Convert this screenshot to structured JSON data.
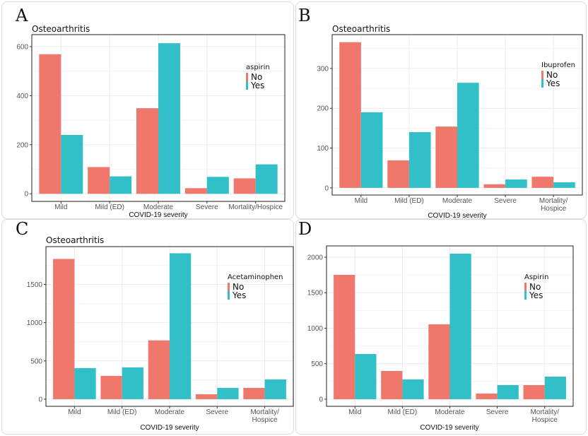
{
  "colors": {
    "No": "#F0776C",
    "Yes": "#31C0C7"
  },
  "chart_data": [
    {
      "panel": "A",
      "type": "bar",
      "title": "Osteoarthritis",
      "xlabel": "COVID-19 severity",
      "ylabel": "",
      "categories": [
        "Mild",
        "Mild (ED)",
        "Moderate",
        "Severe",
        "Mortality/Hospice"
      ],
      "legend_title": "aspirin",
      "legend_position": "right-inside",
      "yticks": [
        0,
        200,
        400,
        600
      ],
      "ylim": [
        -31,
        649
      ],
      "grid": true,
      "series": [
        {
          "name": "No",
          "values": [
            569,
            109,
            349,
            23,
            63
          ]
        },
        {
          "name": "Yes",
          "values": [
            240,
            71,
            614,
            69,
            120
          ]
        }
      ]
    },
    {
      "panel": "B",
      "type": "bar",
      "title": "Osteoarthritis",
      "xlabel": "COVID-19 severity",
      "ylabel": "",
      "categories": [
        "Mild",
        "Mild (ED)",
        "Moderate",
        "Severe",
        "Mortality/\nHospice"
      ],
      "legend_title": "Ibuprofen",
      "legend_position": "right-inside",
      "yticks": [
        0,
        100,
        200,
        300
      ],
      "ylim": [
        -18,
        385
      ],
      "grid": true,
      "series": [
        {
          "name": "No",
          "values": [
            366,
            69,
            154,
            9,
            28
          ]
        },
        {
          "name": "Yes",
          "values": [
            190,
            140,
            264,
            21,
            14
          ]
        }
      ]
    },
    {
      "panel": "C",
      "type": "bar",
      "title": "Osteoarthritis",
      "xlabel": "COVID-19 severity",
      "ylabel": "",
      "categories": [
        "Mild",
        "Mild (ED)",
        "Moderate",
        "Severe",
        "Mortality/\nHospice"
      ],
      "legend_title": "Acetaminophen",
      "legend_position": "right-inside",
      "yticks": [
        0,
        500,
        1000,
        1500
      ],
      "ylim": [
        -93,
        1994
      ],
      "grid": true,
      "series": [
        {
          "name": "No",
          "values": [
            1833,
            305,
            769,
            65,
            148
          ]
        },
        {
          "name": "Yes",
          "values": [
            407,
            416,
            1907,
            148,
            259
          ]
        }
      ]
    },
    {
      "panel": "D",
      "type": "bar",
      "title": "",
      "xlabel": "COVID-19 severity",
      "ylabel": "",
      "categories": [
        "Mild",
        "Mild (ED)",
        "Moderate",
        "Severe",
        "Mortality/\nHospice"
      ],
      "legend_title": "Aspirin",
      "legend_position": "right-inside",
      "yticks": [
        0,
        500,
        1000,
        1500,
        2000
      ],
      "ylim": [
        -100,
        2159
      ],
      "grid": true,
      "series": [
        {
          "name": "No",
          "values": [
            1751,
            398,
            1055,
            80,
            199
          ]
        },
        {
          "name": "Yes",
          "values": [
            637,
            279,
            2050,
            199,
            318
          ]
        }
      ]
    }
  ]
}
